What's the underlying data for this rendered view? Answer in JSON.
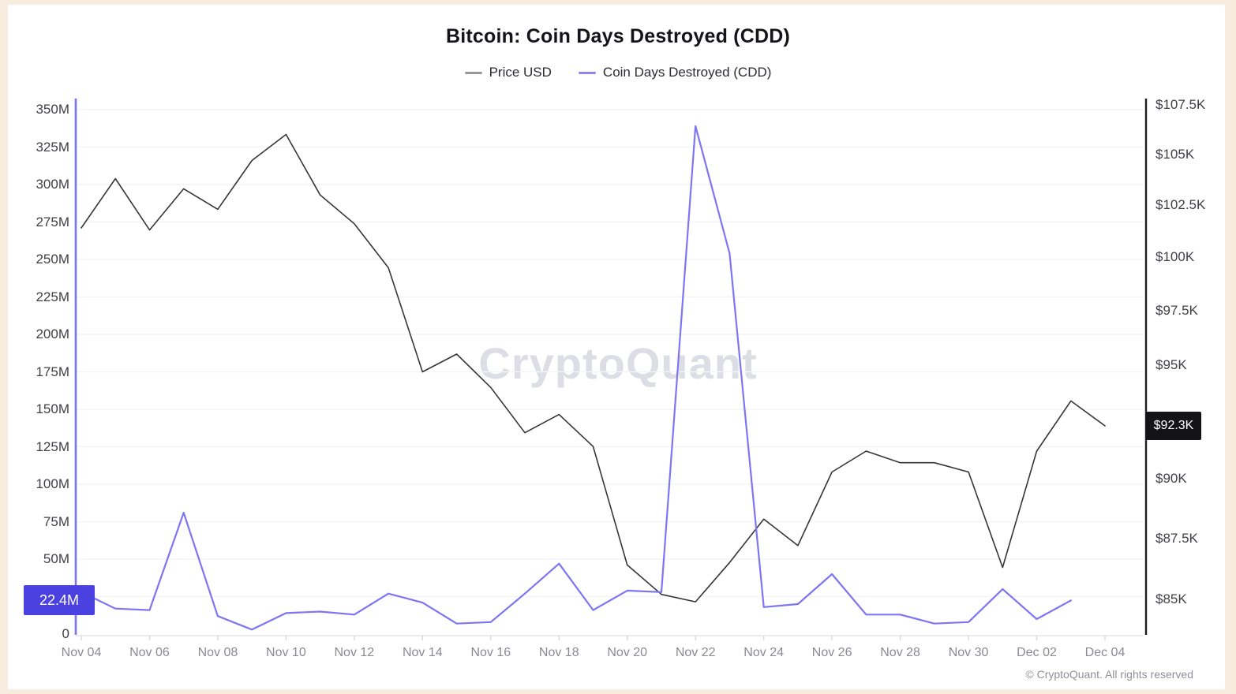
{
  "page": {
    "copyright": "© CryptoQuant. All rights reserved"
  },
  "chart_data": {
    "type": "line",
    "title": "Bitcoin: Coin Days Destroyed (CDD)",
    "watermark": "CryptoQuant",
    "grid": "horizontal-only",
    "legend_position": "top-center",
    "legend": [
      {
        "label": "Price USD",
        "color": "#96969e"
      },
      {
        "label": "Coin Days Destroyed (CDD)",
        "color": "#8b83f2"
      }
    ],
    "x": [
      "Nov 04",
      "Nov 05",
      "Nov 06",
      "Nov 07",
      "Nov 08",
      "Nov 09",
      "Nov 10",
      "Nov 11",
      "Nov 12",
      "Nov 13",
      "Nov 14",
      "Nov 15",
      "Nov 16",
      "Nov 17",
      "Nov 18",
      "Nov 19",
      "Nov 20",
      "Nov 21",
      "Nov 22",
      "Nov 23",
      "Nov 24",
      "Nov 25",
      "Nov 26",
      "Nov 27",
      "Nov 28",
      "Nov 29",
      "Nov 30",
      "Dec 01",
      "Dec 02",
      "Dec 03",
      "Dec 04"
    ],
    "x_tick_labels": [
      "Nov 04",
      "Nov 06",
      "Nov 08",
      "Nov 10",
      "Nov 12",
      "Nov 14",
      "Nov 16",
      "Nov 18",
      "Nov 20",
      "Nov 22",
      "Nov 24",
      "Nov 26",
      "Nov 28",
      "Nov 30",
      "Dec 02",
      "Dec 04"
    ],
    "series": [
      {
        "name": "Price USD",
        "axis": "right",
        "unit": "K USD",
        "color": "#35353b",
        "width": 1.6,
        "values": [
          101.4,
          103.8,
          101.3,
          103.3,
          102.3,
          104.7,
          106.0,
          103.0,
          101.6,
          99.5,
          94.7,
          95.5,
          94.0,
          92.0,
          92.8,
          91.4,
          86.4,
          85.2,
          84.9,
          86.5,
          88.3,
          87.2,
          90.3,
          91.2,
          90.7,
          90.7,
          90.3,
          86.3,
          91.2,
          93.4,
          92.3
        ]
      },
      {
        "name": "Coin Days Destroyed (CDD)",
        "axis": "left",
        "unit": "M coin-days",
        "color": "#7d75f2",
        "width": 2.2,
        "values": [
          28,
          17,
          16,
          81,
          12,
          3,
          14,
          15,
          13,
          27,
          21,
          7,
          8,
          27,
          47,
          16,
          29,
          28,
          339,
          254,
          18,
          20,
          40,
          13,
          13,
          7,
          8,
          30,
          10,
          22.4,
          null
        ]
      }
    ],
    "left_axis": {
      "scale": "linear",
      "range": [
        0,
        350
      ],
      "ticks": [
        {
          "label": "350M",
          "value": 350
        },
        {
          "label": "325M",
          "value": 325
        },
        {
          "label": "300M",
          "value": 300
        },
        {
          "label": "275M",
          "value": 275
        },
        {
          "label": "250M",
          "value": 250
        },
        {
          "label": "225M",
          "value": 225
        },
        {
          "label": "200M",
          "value": 200
        },
        {
          "label": "175M",
          "value": 175
        },
        {
          "label": "150M",
          "value": 150
        },
        {
          "label": "125M",
          "value": 125
        },
        {
          "label": "100M",
          "value": 100
        },
        {
          "label": "75M",
          "value": 75
        },
        {
          "label": "50M",
          "value": 50
        },
        {
          "label": "0",
          "value": 0
        }
      ],
      "badge": {
        "label": "22.4M",
        "value": 22.4,
        "bg": "#4b40e0"
      }
    },
    "right_axis": {
      "scale": "log",
      "range": [
        85,
        107.5
      ],
      "ticks": [
        {
          "label": "$107.5K",
          "value": 107.5
        },
        {
          "label": "$105K",
          "value": 105
        },
        {
          "label": "$102.5K",
          "value": 102.5
        },
        {
          "label": "$100K",
          "value": 100
        },
        {
          "label": "$97.5K",
          "value": 97.5
        },
        {
          "label": "$95K",
          "value": 95
        },
        {
          "label": "$90K",
          "value": 90
        },
        {
          "label": "$87.5K",
          "value": 87.5
        },
        {
          "label": "$85K",
          "value": 85
        }
      ],
      "badge": {
        "label": "$92.3K",
        "value": 92.3,
        "bg": "#141418"
      }
    },
    "colors": {
      "grid": "#f4f4f7",
      "bottom_axis": "#e5e5ec",
      "tick_mark": "#d8d8de",
      "left_axis_line": "#7d75f2",
      "right_axis_line": "#1b1b1f"
    }
  }
}
